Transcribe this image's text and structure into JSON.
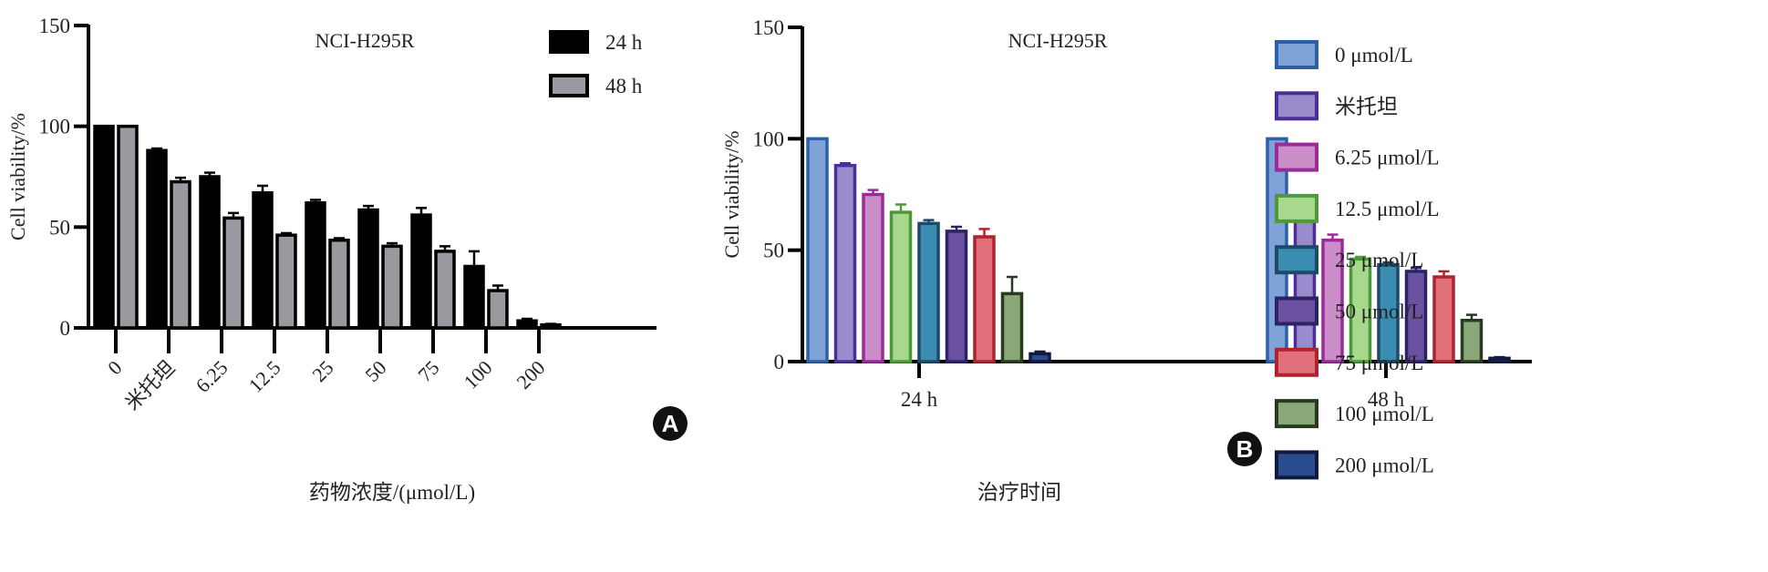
{
  "chart_data": [
    {
      "type": "bar",
      "panel": "A",
      "title": "NCI-H295R",
      "xlabel": "药物浓度/(μmol/L)",
      "ylabel": "Cell viability/%",
      "ylim": [
        0,
        150
      ],
      "yticks": [
        0,
        50,
        100,
        150
      ],
      "categories": [
        "0",
        "米托坦",
        "6.25",
        "12.5",
        "25",
        "50",
        "75",
        "100",
        "200"
      ],
      "legend_position": "top-right",
      "series": [
        {
          "name": "24 h",
          "color": "#000000",
          "border": "#000000",
          "values": [
            100,
            88,
            75,
            67,
            62,
            58.5,
            56,
            30.5,
            3.5
          ],
          "errors": [
            0,
            1,
            2,
            3.5,
            1.5,
            2,
            3.5,
            7.5,
            1
          ]
        },
        {
          "name": "48 h",
          "color": "#999aa0",
          "border": "#000000",
          "values": [
            100,
            72.5,
            54.5,
            46,
            43.5,
            40.5,
            38,
            18.5,
            1.5
          ],
          "errors": [
            0,
            2,
            2.5,
            1,
            1,
            1.5,
            2.5,
            2.5,
            0.5
          ]
        }
      ]
    },
    {
      "type": "bar",
      "panel": "B",
      "title": "NCI-H295R",
      "xlabel": "治疗时间",
      "ylabel": "Cell viability/%",
      "ylim": [
        0,
        150
      ],
      "yticks": [
        0,
        50,
        100,
        150
      ],
      "categories": [
        "24 h",
        "48 h"
      ],
      "legend_position": "right",
      "series": [
        {
          "name": "0 μmol/L",
          "color": "#7fa3d6",
          "border": "#2e5fa8",
          "values": [
            100,
            100
          ],
          "errors": [
            0,
            0
          ]
        },
        {
          "name": "米托坦",
          "color": "#9a8ccc",
          "border": "#4b2e96",
          "values": [
            88,
            72.5
          ],
          "errors": [
            1,
            2
          ]
        },
        {
          "name": "6.25 μmol/L",
          "color": "#cc8ec8",
          "border": "#9b2a9a",
          "values": [
            75,
            54.5
          ],
          "errors": [
            2,
            2.5
          ]
        },
        {
          "name": "12.5 μmol/L",
          "color": "#a8d88c",
          "border": "#4e9a3a",
          "values": [
            67,
            46
          ],
          "errors": [
            3.5,
            1
          ]
        },
        {
          "name": "25 μmol/L",
          "color": "#3a8cb0",
          "border": "#1c4a6a",
          "values": [
            62,
            43.5
          ],
          "errors": [
            1.5,
            1
          ]
        },
        {
          "name": "50 μmol/L",
          "color": "#6a52a0",
          "border": "#2e2266",
          "values": [
            58.5,
            40.5
          ],
          "errors": [
            2,
            1.5
          ]
        },
        {
          "name": "75 μmol/L",
          "color": "#e0707a",
          "border": "#b0222e",
          "values": [
            56,
            38
          ],
          "errors": [
            3.5,
            2.5
          ]
        },
        {
          "name": "100 μmol/L",
          "color": "#88a878",
          "border": "#2a3a22",
          "values": [
            30.5,
            18.5
          ],
          "errors": [
            7.5,
            2.5
          ]
        },
        {
          "name": "200 μmol/L",
          "color": "#2a4c8c",
          "border": "#101a40",
          "values": [
            3.5,
            1.5
          ],
          "errors": [
            1,
            0.5
          ]
        }
      ]
    }
  ]
}
